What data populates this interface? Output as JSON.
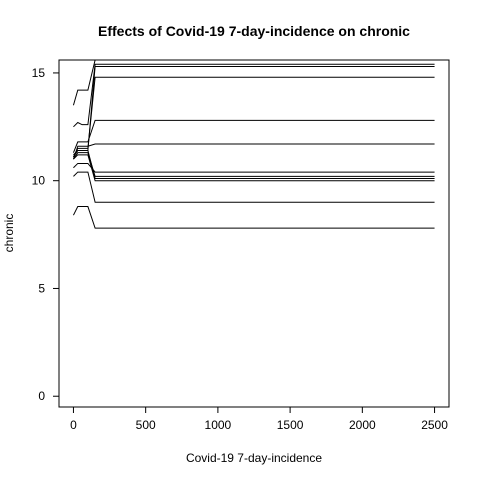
{
  "chart_data": {
    "type": "line",
    "title": "Effects of Covid-19 7-day-incidence on chronic",
    "xlabel": "Covid-19 7-day-incidence",
    "ylabel": "chronic",
    "xlim": [
      -100,
      2600
    ],
    "ylim": [
      -0.5,
      15.6
    ],
    "x_ticks": [
      0,
      500,
      1000,
      1500,
      2000,
      2500
    ],
    "y_ticks": [
      0,
      5,
      10,
      15
    ],
    "grid": false,
    "series": [
      {
        "x": [
          0,
          30,
          60,
          100,
          150,
          2500
        ],
        "values": [
          13.5,
          14.2,
          14.2,
          14.2,
          15.6,
          15.6
        ]
      },
      {
        "x": [
          0,
          30,
          60,
          100,
          150,
          2500
        ],
        "values": [
          12.5,
          12.7,
          12.6,
          12.6,
          15.4,
          15.4
        ]
      },
      {
        "x": [
          0,
          30,
          60,
          100,
          150,
          2500
        ],
        "values": [
          11.2,
          11.4,
          11.4,
          11.4,
          15.3,
          15.3
        ]
      },
      {
        "x": [
          0,
          30,
          60,
          100,
          150,
          2500
        ],
        "values": [
          11.1,
          11.5,
          11.5,
          11.5,
          14.8,
          14.8
        ]
      },
      {
        "x": [
          0,
          30,
          60,
          100,
          150,
          2500
        ],
        "values": [
          11.3,
          11.8,
          11.8,
          11.8,
          12.8,
          12.8
        ]
      },
      {
        "x": [
          0,
          30,
          60,
          100,
          150,
          2500
        ],
        "values": [
          11.0,
          11.6,
          11.6,
          11.6,
          11.7,
          11.7
        ]
      },
      {
        "x": [
          0,
          30,
          60,
          100,
          150,
          2500
        ],
        "values": [
          10.6,
          10.8,
          10.8,
          10.8,
          10.4,
          10.4
        ]
      },
      {
        "x": [
          0,
          30,
          60,
          100,
          150,
          2500
        ],
        "values": [
          11.0,
          11.3,
          11.3,
          11.3,
          10.2,
          10.2
        ]
      },
      {
        "x": [
          0,
          30,
          60,
          100,
          150,
          2500
        ],
        "values": [
          11.1,
          11.4,
          11.4,
          11.4,
          10.1,
          10.1
        ]
      },
      {
        "x": [
          0,
          30,
          60,
          100,
          150,
          2500
        ],
        "values": [
          11.0,
          11.2,
          11.2,
          11.2,
          10.0,
          10.0
        ]
      },
      {
        "x": [
          0,
          30,
          60,
          100,
          150,
          2500
        ],
        "values": [
          10.2,
          10.4,
          10.4,
          10.4,
          9.0,
          9.0
        ]
      },
      {
        "x": [
          0,
          30,
          60,
          100,
          150,
          2500
        ],
        "values": [
          8.4,
          8.8,
          8.8,
          8.8,
          7.8,
          7.8
        ]
      }
    ]
  }
}
